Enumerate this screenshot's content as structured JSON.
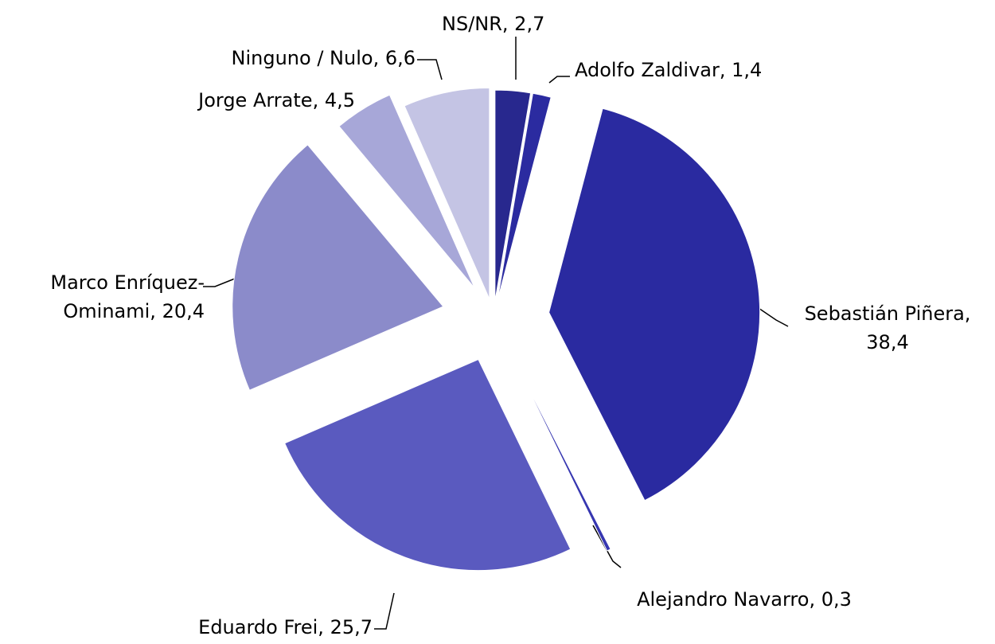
{
  "chart_data": {
    "type": "pie",
    "categories": [
      "NS/NR",
      "Adolfo Zaldivar",
      "Sebastián Piñera",
      "Alejandro Navarro",
      "Eduardo Frei",
      "Marco Enríquez-Ominami",
      "Jorge Arrate",
      "Ninguno / Nulo"
    ],
    "values": [
      2.7,
      1.4,
      38.4,
      0.3,
      25.7,
      20.4,
      4.5,
      6.6
    ],
    "value_labels": [
      "2,7",
      "1,4",
      "38,4",
      "0,3",
      "25,7",
      "20,4",
      "4,5",
      "6,6"
    ],
    "label_separator": ", ",
    "colors": [
      "#28288e",
      "#2b2ba0",
      "#2a2aa0",
      "#3636b0",
      "#5a5abf",
      "#8b8bca",
      "#a7a7d8",
      "#c4c4e4"
    ]
  }
}
